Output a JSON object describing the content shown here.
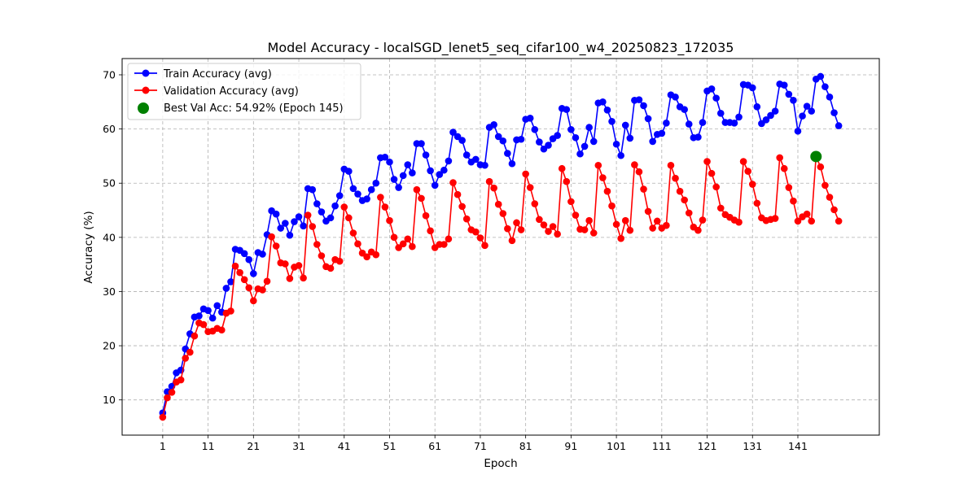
{
  "chart_data": {
    "type": "line",
    "title": "Model Accuracy - localSGD_lenet5_seq_cifar100_w4_20250823_172035",
    "xlabel": "Epoch",
    "ylabel": "Accuracy (%)",
    "xlim": [
      -7.95,
      158.95
    ],
    "ylim": [
      3.5,
      73.0
    ],
    "xticks": [
      1,
      11,
      21,
      31,
      41,
      51,
      61,
      71,
      81,
      91,
      101,
      111,
      121,
      131,
      141
    ],
    "yticks": [
      10,
      20,
      30,
      40,
      50,
      60,
      70
    ],
    "grid": true,
    "legend_position": "upper-left",
    "x": [
      1,
      2,
      3,
      4,
      5,
      6,
      7,
      8,
      9,
      10,
      11,
      12,
      13,
      14,
      15,
      16,
      17,
      18,
      19,
      20,
      21,
      22,
      23,
      24,
      25,
      26,
      27,
      28,
      29,
      30,
      31,
      32,
      33,
      34,
      35,
      36,
      37,
      38,
      39,
      40,
      41,
      42,
      43,
      44,
      45,
      46,
      47,
      48,
      49,
      50,
      51,
      52,
      53,
      54,
      55,
      56,
      57,
      58,
      59,
      60,
      61,
      62,
      63,
      64,
      65,
      66,
      67,
      68,
      69,
      70,
      71,
      72,
      73,
      74,
      75,
      76,
      77,
      78,
      79,
      80,
      81,
      82,
      83,
      84,
      85,
      86,
      87,
      88,
      89,
      90,
      91,
      92,
      93,
      94,
      95,
      96,
      97,
      98,
      99,
      100,
      101,
      102,
      103,
      104,
      105,
      106,
      107,
      108,
      109,
      110,
      111,
      112,
      113,
      114,
      115,
      116,
      117,
      118,
      119,
      120,
      121,
      122,
      123,
      124,
      125,
      126,
      127,
      128,
      129,
      130,
      131,
      132,
      133,
      134,
      135,
      136,
      137,
      138,
      139,
      140,
      141,
      142,
      143,
      144,
      145,
      146,
      147,
      148,
      149,
      150
    ],
    "series": [
      {
        "name": "Train Accuracy (avg)",
        "color": "#0000ff",
        "values": [
          7.6,
          11.5,
          12.5,
          15.0,
          15.5,
          19.4,
          22.2,
          25.3,
          25.5,
          26.8,
          26.5,
          25.1,
          27.4,
          26.2,
          30.6,
          31.8,
          37.8,
          37.6,
          37.0,
          35.9,
          33.3,
          37.2,
          36.9,
          40.5,
          44.9,
          44.3,
          41.7,
          42.6,
          40.4,
          42.9,
          43.8,
          42.1,
          49.0,
          48.8,
          46.2,
          44.7,
          43.0,
          43.6,
          45.8,
          47.7,
          52.6,
          52.2,
          49.0,
          48.0,
          46.8,
          47.1,
          48.8,
          50.0,
          54.7,
          54.8,
          53.9,
          50.7,
          49.2,
          51.4,
          53.4,
          51.9,
          57.3,
          57.3,
          55.2,
          52.3,
          49.6,
          51.6,
          52.4,
          54.1,
          59.4,
          58.6,
          57.9,
          55.2,
          53.9,
          54.4,
          53.4,
          53.3,
          60.3,
          60.8,
          58.6,
          57.8,
          55.5,
          53.6,
          58.0,
          58.1,
          61.8,
          62.0,
          59.9,
          57.6,
          56.3,
          57.0,
          58.2,
          58.8,
          63.8,
          63.6,
          59.9,
          58.4,
          55.4,
          56.8,
          60.3,
          57.7,
          64.8,
          65.0,
          63.5,
          61.4,
          57.2,
          55.1,
          60.7,
          58.3,
          65.3,
          65.4,
          64.3,
          61.9,
          57.7,
          59.0,
          59.2,
          61.1,
          66.3,
          65.9,
          64.1,
          63.6,
          60.9,
          58.4,
          58.5,
          61.2,
          67.0,
          67.4,
          65.7,
          62.9,
          61.2,
          61.2,
          61.1,
          62.2,
          68.2,
          68.1,
          67.6,
          64.1,
          61.0,
          61.7,
          62.5,
          63.3,
          68.3,
          68.1,
          66.4,
          65.3,
          59.6,
          62.4,
          64.2,
          63.3,
          69.2,
          69.7,
          67.8,
          65.9,
          63.0,
          60.6
        ]
      },
      {
        "name": "Validation Accuracy (avg)",
        "color": "#ff0000",
        "values": [
          6.8,
          10.4,
          11.4,
          13.3,
          13.7,
          17.7,
          18.8,
          21.8,
          24.2,
          23.9,
          22.6,
          22.7,
          23.2,
          22.9,
          26.0,
          26.4,
          34.7,
          33.5,
          32.2,
          30.7,
          28.3,
          30.5,
          30.3,
          31.9,
          40.1,
          38.4,
          35.3,
          35.1,
          32.4,
          34.5,
          34.8,
          32.5,
          44.1,
          42.0,
          38.7,
          36.6,
          34.6,
          34.3,
          35.9,
          35.6,
          45.6,
          43.6,
          40.8,
          38.8,
          37.1,
          36.4,
          37.3,
          36.8,
          47.4,
          45.6,
          43.1,
          40.0,
          38.1,
          38.8,
          39.7,
          38.3,
          48.8,
          47.2,
          44.0,
          41.2,
          38.1,
          38.7,
          38.7,
          39.7,
          50.1,
          47.9,
          45.7,
          43.4,
          41.4,
          41.0,
          39.9,
          38.5,
          50.3,
          49.1,
          46.1,
          44.4,
          41.6,
          39.4,
          42.7,
          41.4,
          51.7,
          49.2,
          46.2,
          43.3,
          42.3,
          41.1,
          42.0,
          40.6,
          52.7,
          50.3,
          46.6,
          44.1,
          41.5,
          41.4,
          43.1,
          40.8,
          53.3,
          51.0,
          48.5,
          45.8,
          42.4,
          39.8,
          43.1,
          41.3,
          53.4,
          52.1,
          48.9,
          44.8,
          41.7,
          43.0,
          41.7,
          42.2,
          53.3,
          50.9,
          48.5,
          46.9,
          44.5,
          41.9,
          41.3,
          43.2,
          54.0,
          51.8,
          49.3,
          45.4,
          44.2,
          43.7,
          43.2,
          42.8,
          54.0,
          52.2,
          49.8,
          46.3,
          43.6,
          43.1,
          43.3,
          43.5,
          54.7,
          52.7,
          49.2,
          46.7,
          43.0,
          43.8,
          44.3,
          43.0,
          54.9,
          53.0,
          49.6,
          47.4,
          45.1,
          43.0
        ]
      }
    ],
    "best_marker": {
      "label": "Best Val Acc: 54.92% (Epoch 145)",
      "x": 145,
      "y": 54.92,
      "color": "#008000"
    }
  }
}
